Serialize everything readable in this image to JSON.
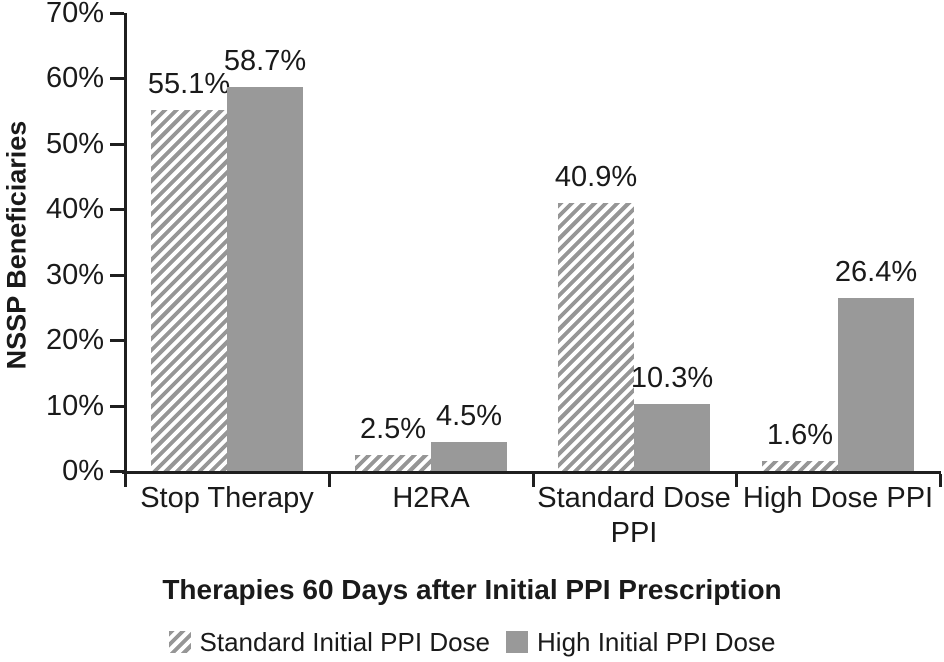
{
  "chart_data": {
    "type": "bar",
    "xlabel": "Therapies 60 Days after Initial PPI Prescription",
    "ylabel": "NSSP Beneficiaries",
    "categories": [
      "Stop Therapy",
      "H2RA",
      "Standard Dose PPI",
      "High Dose PPI"
    ],
    "series": [
      {
        "name": "Standard Initial PPI Dose",
        "style": "hatched",
        "values": [
          55.1,
          2.5,
          40.9,
          1.6
        ],
        "data_labels": [
          "55.1%",
          "2.5%",
          "40.9%",
          "1.6%"
        ]
      },
      {
        "name": "High Initial PPI Dose",
        "style": "solid",
        "values": [
          58.7,
          4.5,
          10.3,
          26.4
        ],
        "data_labels": [
          "58.7%",
          "4.5%",
          "10.3%",
          "26.4%"
        ]
      }
    ],
    "y_tick_labels": [
      "0%",
      "10%",
      "20%",
      "30%",
      "40%",
      "50%",
      "60%",
      "70%"
    ],
    "ylim": [
      0,
      70
    ],
    "grid": false,
    "legend_position": "bottom",
    "colors": {
      "bar_gray": "#999999",
      "axis": "#1f1f1f",
      "text": "#1a1a1a",
      "background": "#ffffff"
    }
  }
}
